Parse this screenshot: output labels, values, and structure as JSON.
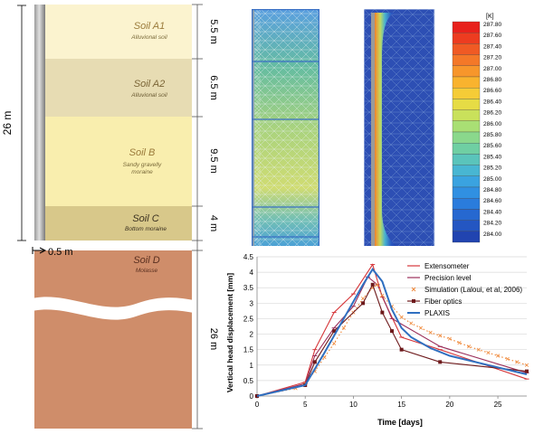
{
  "soil_column": {
    "layers": [
      {
        "name": "Soil A1",
        "desc": "Alluvional soil",
        "thickness": "5.5 m",
        "color": "#fbf3cf"
      },
      {
        "name": "Soil A2",
        "desc": "Alluvional soil",
        "thickness": "6.5 m",
        "color": "#e7dcb3"
      },
      {
        "name": "Soil B",
        "desc": "Sandy gravelly\nmoraine",
        "thickness": "9.5 m",
        "color": "#f9eeae"
      },
      {
        "name": "Soil C",
        "desc": "Bottom moraine",
        "thickness": "4 m",
        "color": "#d8c88a"
      },
      {
        "name": "Soil D",
        "desc": "Molasse",
        "thickness": "26 m",
        "color": "#cf8d6a"
      }
    ],
    "pile_length": "26 m",
    "pile_radius": "0.5 m"
  },
  "temperature_scale": {
    "unit": "[K]",
    "ticks": [
      "287.80",
      "287.60",
      "287.40",
      "287.20",
      "287.00",
      "286.80",
      "286.60",
      "286.40",
      "286.20",
      "286.00",
      "285.80",
      "285.60",
      "285.40",
      "285.20",
      "285.00",
      "284.80",
      "284.60",
      "284.40",
      "284.20",
      "284.00"
    ],
    "colors": [
      "#e8211c",
      "#ed3c20",
      "#f05a24",
      "#f47828",
      "#f7962b",
      "#f9b32e",
      "#f5cc37",
      "#e6dc45",
      "#c9e15b",
      "#a9df74",
      "#8ad88c",
      "#6fcfa3",
      "#5ac4bb",
      "#48b6d2",
      "#3aa3e0",
      "#3090e2",
      "#2a7cdc",
      "#2668d0",
      "#2456c2",
      "#2144b0"
    ]
  },
  "chart_data": {
    "type": "line",
    "xlabel": "Time [days]",
    "ylabel": "Vertical head displacement [mm]",
    "xlim": [
      0,
      28
    ],
    "ylim": [
      0,
      4.5
    ],
    "xticks": [
      0,
      5,
      10,
      15,
      20,
      25
    ],
    "yticks": [
      0,
      0.5,
      1,
      1.5,
      2,
      2.5,
      3,
      3.5,
      4,
      4.5
    ],
    "legend_position": "top-right",
    "series": [
      {
        "name": "Extensometer",
        "color": "#d6373a",
        "style": "line-marker",
        "x": [
          0,
          5,
          6,
          8,
          10,
          12,
          13,
          15,
          19,
          28
        ],
        "y": [
          0,
          0.45,
          1.5,
          2.7,
          3.3,
          4.25,
          3.2,
          1.9,
          1.5,
          0.55
        ]
      },
      {
        "name": "Precision level",
        "color": "#9b2f5a",
        "style": "line-marker",
        "x": [
          0,
          5,
          6,
          8,
          10,
          11.5,
          12.5,
          14,
          19,
          28
        ],
        "y": [
          0,
          0.4,
          1.3,
          2.2,
          2.9,
          3.85,
          3.6,
          2.5,
          1.6,
          0.75
        ]
      },
      {
        "name": "Simulation (Laloui, et al, 2006)",
        "color": "#f08a3c",
        "style": "cross-marker",
        "x": [
          0,
          4,
          5,
          6,
          7,
          8,
          9,
          10,
          11,
          12,
          12.5,
          13,
          14,
          15,
          16,
          17,
          18,
          19,
          20,
          21,
          22,
          23,
          24,
          25,
          26,
          27,
          28
        ],
        "y": [
          0,
          0.25,
          0.4,
          0.8,
          1.25,
          1.7,
          2.2,
          2.7,
          3.15,
          3.5,
          3.6,
          3.25,
          2.9,
          2.55,
          2.35,
          2.2,
          2.05,
          1.95,
          1.85,
          1.72,
          1.6,
          1.5,
          1.4,
          1.3,
          1.2,
          1.1,
          1.0
        ]
      },
      {
        "name": "Fiber optics",
        "color": "#6e1a1c",
        "style": "square-marker",
        "x": [
          0,
          5,
          6,
          8,
          11,
          12,
          13,
          14,
          15,
          19,
          28
        ],
        "y": [
          0,
          0.35,
          1.1,
          2.1,
          3.0,
          3.6,
          2.7,
          2.1,
          1.5,
          1.1,
          0.8
        ]
      },
      {
        "name": "PLAXIS",
        "color": "#2f6fc0",
        "style": "line",
        "x": [
          0,
          5,
          7,
          9,
          11,
          12,
          13,
          14,
          15,
          16,
          18,
          20,
          24,
          28
        ],
        "y": [
          0,
          0.35,
          1.4,
          2.5,
          3.6,
          4.1,
          3.7,
          2.8,
          2.2,
          1.9,
          1.55,
          1.3,
          1.0,
          0.7
        ]
      }
    ]
  }
}
